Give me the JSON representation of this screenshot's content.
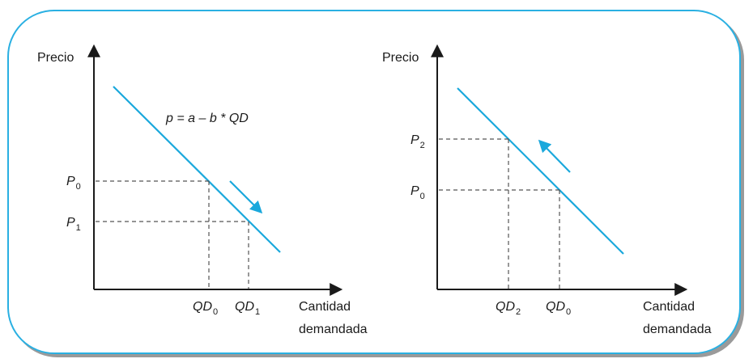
{
  "colors": {
    "border": "#2ab0e2",
    "curve": "#1aa8dc",
    "axis": "#1a1a1a",
    "dash": "#555555"
  },
  "left_panel": {
    "y_axis_label": "Precio",
    "x_axis_label_line1": "Cantidad",
    "x_axis_label_line2": "demandada",
    "equation": "p = a – b * QD",
    "price_labels": [
      {
        "base": "P",
        "sub": "0"
      },
      {
        "base": "P",
        "sub": "1"
      }
    ],
    "quantity_labels": [
      {
        "base": "QD",
        "sub": "0"
      },
      {
        "base": "QD",
        "sub": "1"
      }
    ],
    "arrow_direction": "down-right"
  },
  "right_panel": {
    "y_axis_label": "Precio",
    "x_axis_label_line1": "Cantidad",
    "x_axis_label_line2": "demandada",
    "price_labels": [
      {
        "base": "P",
        "sub": "2"
      },
      {
        "base": "P",
        "sub": "0"
      }
    ],
    "quantity_labels": [
      {
        "base": "QD",
        "sub": "2"
      },
      {
        "base": "QD",
        "sub": "0"
      }
    ],
    "arrow_direction": "up-left"
  }
}
